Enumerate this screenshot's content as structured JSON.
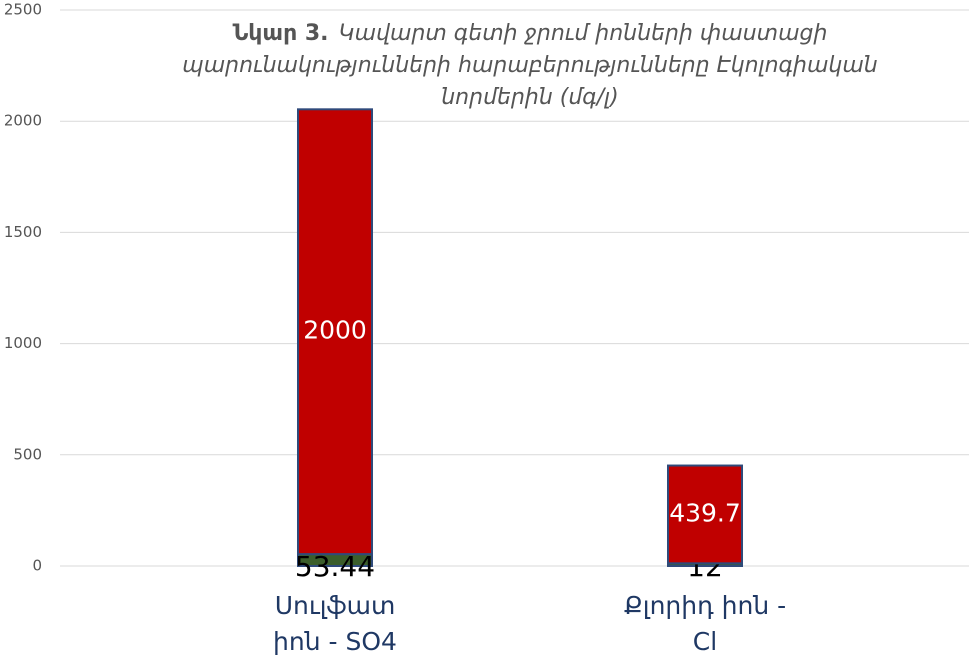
{
  "chart_data": {
    "type": "stacked_bar",
    "title_number": "Նկար 3.",
    "title": "Կավարտ գետի ջրում իոնների փաստացի պարունակությունների հարաբերությունները Էկոլոգիական նորմերին (մգ/լ)",
    "categories": [
      "Սուլֆատ իոն - SO4",
      "Քլորիդ իոն - Cl"
    ],
    "series": [
      {
        "color": "#3b5e2b",
        "values": [
          53.44,
          12
        ],
        "label_color": "#000000"
      },
      {
        "color": "#c00000",
        "values": [
          2000,
          439.7
        ],
        "label_color": "#ffffff"
      }
    ],
    "ylim": [
      0,
      2500
    ],
    "yticks": [
      0,
      500,
      1000,
      1500,
      2000,
      2500
    ],
    "grid": true
  }
}
